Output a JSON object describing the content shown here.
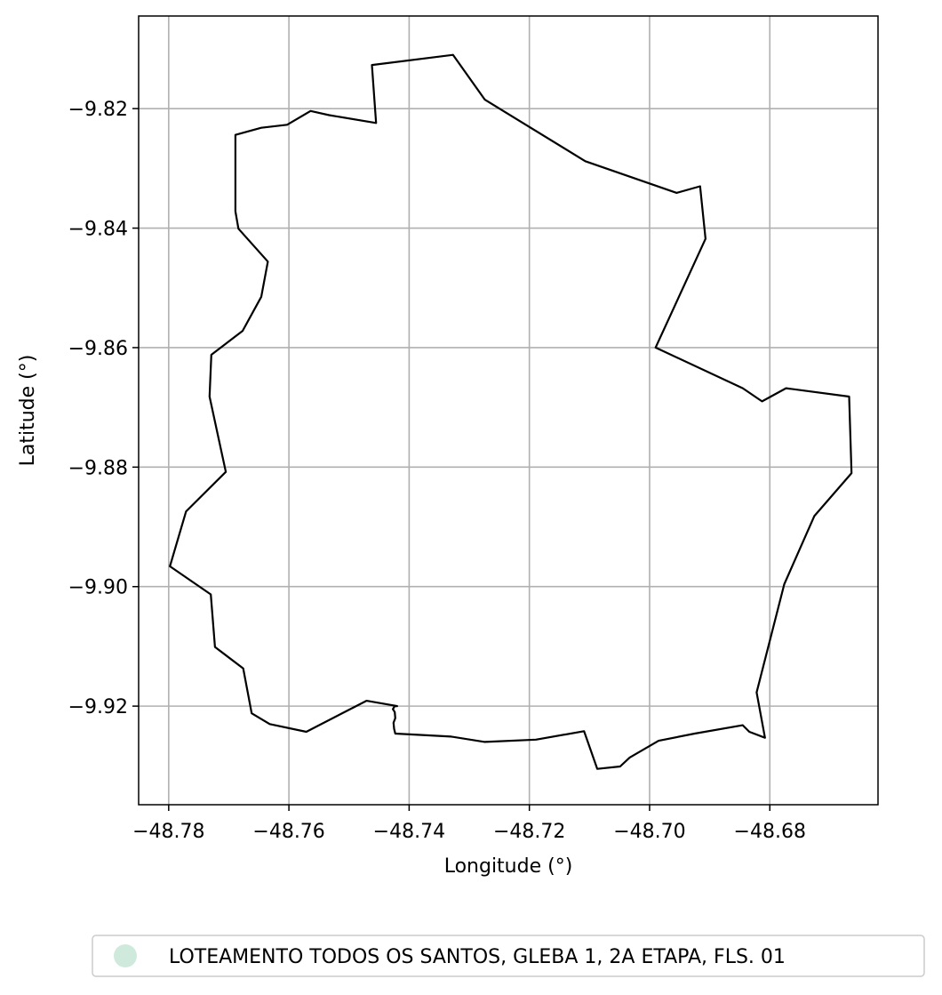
{
  "map": {
    "xlabel": "Longitude (°)",
    "ylabel": "Latitude (°)",
    "xlim": [
      -48.785,
      -48.662
    ],
    "ylim": [
      -9.9365,
      -9.8045
    ],
    "grid": true,
    "x_ticks": [
      -48.78,
      -48.76,
      -48.74,
      -48.72,
      -48.7,
      -48.68
    ],
    "x_tick_labels": [
      "−48.78",
      "−48.76",
      "−48.74",
      "−48.72",
      "−48.70",
      "−48.68"
    ],
    "y_ticks": [
      -9.82,
      -9.84,
      -9.86,
      -9.88,
      -9.9,
      -9.92
    ],
    "y_tick_labels": [
      "−9.82",
      "−9.84",
      "−9.86",
      "−9.88",
      "−9.90",
      "−9.92"
    ],
    "boundary_color": "#000000",
    "grid_color": "#b0b0b0",
    "legend": {
      "placement": "bottom-center",
      "label": "LOTEAMENTO TODOS OS SANTOS, GLEBA 1, 2A ETAPA, FLS. 01",
      "marker_color": "#cfeadc"
    },
    "boundary": [
      [
        -48.7462,
        -9.8127
      ],
      [
        -48.7327,
        -9.811
      ],
      [
        -48.7274,
        -9.8185
      ],
      [
        -48.7107,
        -9.8288
      ],
      [
        -48.6955,
        -9.8341
      ],
      [
        -48.6916,
        -9.833
      ],
      [
        -48.6907,
        -9.8418
      ],
      [
        -48.699,
        -9.86
      ],
      [
        -48.6845,
        -9.8668
      ],
      [
        -48.6813,
        -9.869
      ],
      [
        -48.6773,
        -9.8668
      ],
      [
        -48.6668,
        -9.8682
      ],
      [
        -48.6664,
        -9.881
      ],
      [
        -48.6726,
        -9.8882
      ],
      [
        -48.6776,
        -9.8996
      ],
      [
        -48.6822,
        -9.9177
      ],
      [
        -48.6808,
        -9.9253
      ],
      [
        -48.6834,
        -9.9243
      ],
      [
        -48.6845,
        -9.9232
      ],
      [
        -48.6925,
        -9.9246
      ],
      [
        -48.6985,
        -9.9258
      ],
      [
        -48.7033,
        -9.9286
      ],
      [
        -48.7049,
        -9.9301
      ],
      [
        -48.7087,
        -9.9305
      ],
      [
        -48.7109,
        -9.9242
      ],
      [
        -48.7189,
        -9.9256
      ],
      [
        -48.7274,
        -9.926
      ],
      [
        -48.733,
        -9.9251
      ],
      [
        -48.7423,
        -9.9246
      ],
      [
        -48.7425,
        -9.9238
      ],
      [
        -48.7426,
        -9.9228
      ],
      [
        -48.7423,
        -9.922
      ],
      [
        -48.7424,
        -9.921
      ],
      [
        -48.7427,
        -9.9205
      ],
      [
        -48.7424,
        -9.92
      ],
      [
        -48.742,
        -9.92
      ],
      [
        -48.7471,
        -9.9191
      ],
      [
        -48.7571,
        -9.9243
      ],
      [
        -48.7632,
        -9.923
      ],
      [
        -48.7662,
        -9.9212
      ],
      [
        -48.7676,
        -9.9137
      ],
      [
        -48.7723,
        -9.9101
      ],
      [
        -48.773,
        -9.9013
      ],
      [
        -48.7798,
        -9.8966
      ],
      [
        -48.7771,
        -9.8874
      ],
      [
        -48.7705,
        -9.8808
      ],
      [
        -48.7732,
        -9.8682
      ],
      [
        -48.7729,
        -9.8612
      ],
      [
        -48.7677,
        -9.8572
      ],
      [
        -48.7646,
        -9.8515
      ],
      [
        -48.7635,
        -9.8456
      ],
      [
        -48.7684,
        -9.8401
      ],
      [
        -48.7689,
        -9.8372
      ],
      [
        -48.7689,
        -9.8244
      ],
      [
        -48.7646,
        -9.8232
      ],
      [
        -48.7603,
        -9.8227
      ],
      [
        -48.7564,
        -9.8204
      ],
      [
        -48.7533,
        -9.8211
      ],
      [
        -48.7455,
        -9.8224
      ],
      [
        -48.7462,
        -9.8127
      ]
    ]
  }
}
